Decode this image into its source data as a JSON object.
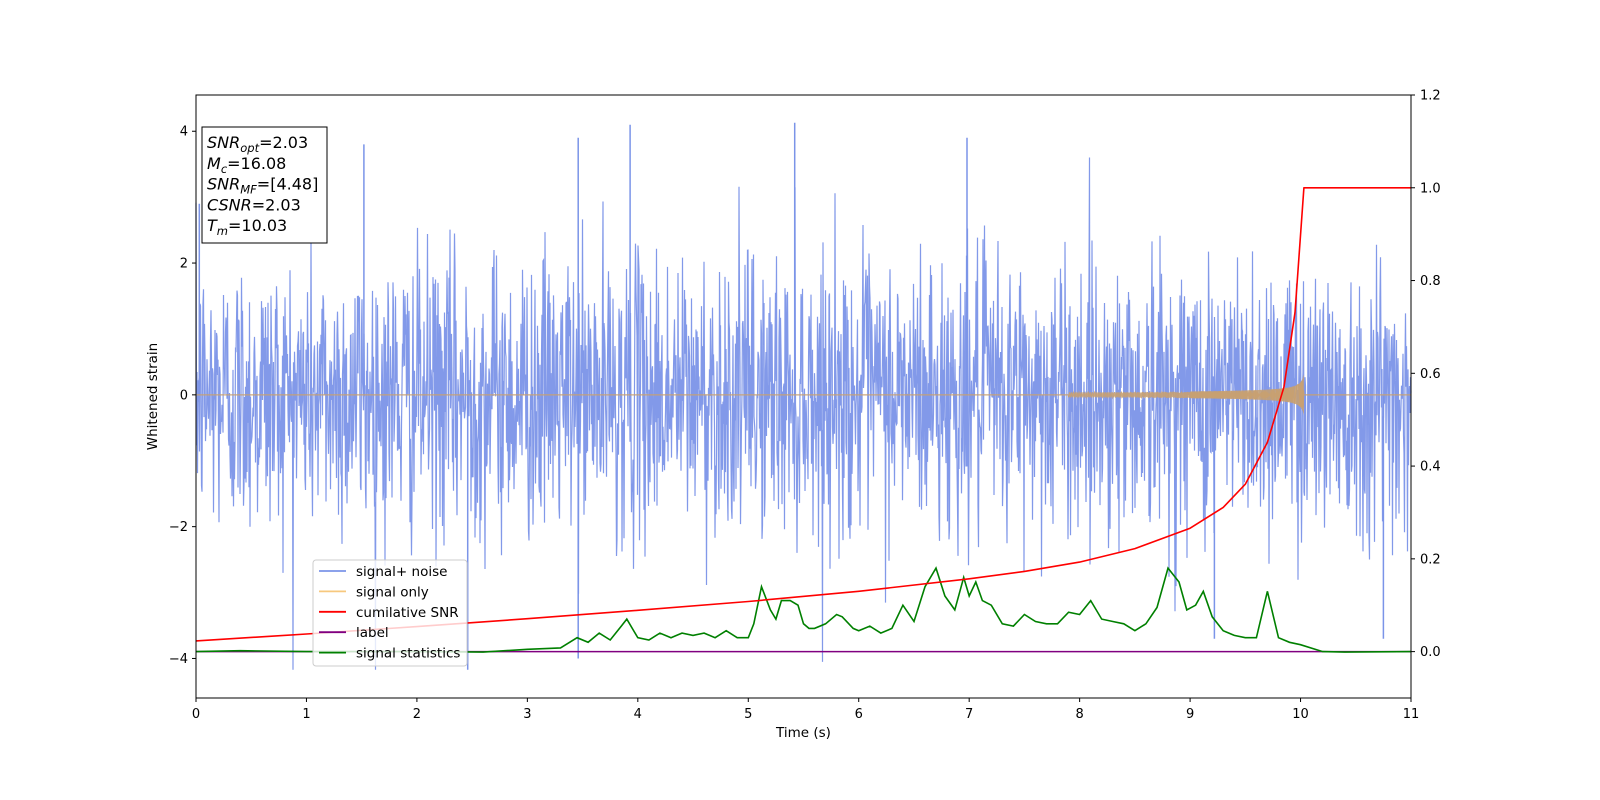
{
  "chart_data": {
    "type": "line",
    "xlabel": "Time (s)",
    "ylabel": "Whitened strain",
    "xlim": [
      0,
      11
    ],
    "ylim": [
      -4.6,
      4.55
    ],
    "y2lim": [
      -0.1,
      1.2
    ],
    "x_ticks": [
      "0",
      "1",
      "2",
      "3",
      "4",
      "5",
      "6",
      "7",
      "8",
      "9",
      "10",
      "11"
    ],
    "y_ticks": [
      "4",
      "2",
      "0",
      "−2",
      "−4"
    ],
    "y2_ticks": [
      "1.2",
      "1.0",
      "0.8",
      "0.6",
      "0.4",
      "0.2",
      "0.0"
    ],
    "annotation": {
      "lines": [
        {
          "main": "SNR",
          "sub": "opt",
          "rest": "=2.03"
        },
        {
          "main": "M",
          "sub": "c",
          "rest": "=16.08"
        },
        {
          "main": "SNR",
          "sub": "MF",
          "rest": "=[4.48]"
        },
        {
          "main": "CSNR",
          "sub": "",
          "rest": "=2.03"
        },
        {
          "main": "T",
          "sub": "m",
          "rest": "=10.03"
        }
      ]
    },
    "legend": {
      "position": "lower-left",
      "entries": [
        {
          "label": "signal+ noise",
          "color": "#7b94e8"
        },
        {
          "label": "signal only",
          "color": "#f7c87e"
        },
        {
          "label": "cumilative SNR",
          "color": "#ff0000"
        },
        {
          "label": "label",
          "color": "#800080"
        },
        {
          "label": "signal statistics",
          "color": "#008000"
        }
      ]
    },
    "series": [
      {
        "name": "signal+ noise",
        "axis": "left",
        "color": "#7b94e8",
        "noise_std": 1.05,
        "y_min": -4.17,
        "y_max": 4.13,
        "approx_peaks": [
          [
            0.03,
            2.9
          ],
          [
            1.52,
            3.8
          ],
          [
            3.46,
            3.9
          ],
          [
            3.93,
            4.1
          ],
          [
            5.42,
            4.13
          ],
          [
            6.98,
            3.9
          ],
          [
            2.46,
            -4.17
          ],
          [
            3.46,
            -4.0
          ],
          [
            9.22,
            -3.7
          ],
          [
            10.75,
            -3.7
          ]
        ]
      },
      {
        "name": "signal only",
        "axis": "left",
        "color": "#c8a070",
        "chirp_start": 7.9,
        "merger_time": 10.03,
        "peak_amplitude": 0.33,
        "value_elsewhere": 0
      },
      {
        "name": "cumilative SNR",
        "axis": "right",
        "x": [
          0,
          1,
          2,
          3,
          4,
          5,
          6,
          7,
          7.5,
          8,
          8.5,
          9,
          9.3,
          9.5,
          9.7,
          9.85,
          9.95,
          10.03,
          11
        ],
        "y": [
          0.023,
          0.038,
          0.054,
          0.071,
          0.089,
          0.108,
          0.13,
          0.157,
          0.173,
          0.193,
          0.222,
          0.266,
          0.311,
          0.361,
          0.451,
          0.571,
          0.731,
          1.0,
          1.0
        ]
      },
      {
        "name": "label",
        "axis": "right",
        "x": [
          0,
          11
        ],
        "y": [
          0,
          0
        ]
      },
      {
        "name": "signal statistics",
        "axis": "right",
        "x": [
          0,
          0.4,
          1.0,
          2.0,
          2.6,
          3.0,
          3.3,
          3.45,
          3.55,
          3.65,
          3.75,
          3.85,
          3.9,
          4.0,
          4.1,
          4.2,
          4.3,
          4.4,
          4.5,
          4.6,
          4.7,
          4.8,
          4.9,
          5.0,
          5.05,
          5.12,
          5.2,
          5.25,
          5.3,
          5.38,
          5.45,
          5.5,
          5.55,
          5.6,
          5.7,
          5.8,
          5.85,
          5.95,
          6.0,
          6.1,
          6.2,
          6.3,
          6.4,
          6.5,
          6.6,
          6.7,
          6.78,
          6.87,
          6.95,
          7.0,
          7.06,
          7.12,
          7.2,
          7.3,
          7.4,
          7.5,
          7.6,
          7.7,
          7.8,
          7.9,
          8.0,
          8.1,
          8.2,
          8.3,
          8.4,
          8.5,
          8.6,
          8.7,
          8.8,
          8.9,
          8.97,
          9.05,
          9.12,
          9.2,
          9.3,
          9.4,
          9.5,
          9.6,
          9.7,
          9.8,
          9.9,
          10.0,
          10.2,
          10.4,
          11.0
        ],
        "y": [
          0.0,
          0.002,
          0.0,
          0.0,
          -0.001,
          0.005,
          0.008,
          0.03,
          0.02,
          0.04,
          0.025,
          0.055,
          0.07,
          0.03,
          0.025,
          0.04,
          0.03,
          0.04,
          0.035,
          0.04,
          0.03,
          0.045,
          0.03,
          0.03,
          0.06,
          0.14,
          0.09,
          0.07,
          0.11,
          0.11,
          0.1,
          0.06,
          0.05,
          0.05,
          0.06,
          0.08,
          0.075,
          0.05,
          0.045,
          0.055,
          0.04,
          0.05,
          0.1,
          0.065,
          0.14,
          0.18,
          0.12,
          0.09,
          0.16,
          0.12,
          0.15,
          0.11,
          0.1,
          0.06,
          0.055,
          0.08,
          0.065,
          0.06,
          0.06,
          0.085,
          0.08,
          0.11,
          0.07,
          0.065,
          0.06,
          0.045,
          0.06,
          0.095,
          0.18,
          0.15,
          0.09,
          0.1,
          0.13,
          0.075,
          0.045,
          0.035,
          0.03,
          0.03,
          0.13,
          0.03,
          0.02,
          0.015,
          0.0,
          -0.001,
          0.0
        ]
      }
    ]
  }
}
